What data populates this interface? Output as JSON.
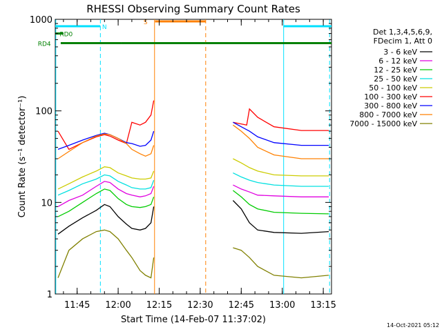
{
  "chart_data": {
    "type": "line",
    "title": "RHESSI Observing Summary Count Rates",
    "xlabel": "Start Time (14-Feb-07 11:37:02)",
    "ylabel": "Count Rate (s⁻¹ detector⁻¹)",
    "y_scale": "log",
    "ylim": [
      1,
      1000
    ],
    "xlim_minutes": [
      0,
      101
    ],
    "x_ticks": [
      {
        "t": 8,
        "label": "11:45"
      },
      {
        "t": 23,
        "label": "12:00"
      },
      {
        "t": 38,
        "label": "12:15"
      },
      {
        "t": 53,
        "label": "12:30"
      },
      {
        "t": 68,
        "label": "12:45"
      },
      {
        "t": 83,
        "label": "13:00"
      },
      {
        "t": 98,
        "label": "13:15"
      }
    ],
    "y_ticks": [
      {
        "v": 1,
        "label": "1"
      },
      {
        "v": 10,
        "label": "10"
      },
      {
        "v": 100,
        "label": "100"
      },
      {
        "v": 1000,
        "label": "1000"
      }
    ],
    "legend_header": [
      "Det 1,3,4,5,6,9,",
      "FDecim 1, Att 0"
    ],
    "legend_position": "right",
    "series": [
      {
        "name": "3 - 6 keV",
        "color": "#000000",
        "values": [
          [
            1,
            4.5
          ],
          [
            5,
            5.5
          ],
          [
            10,
            6.8
          ],
          [
            15,
            8.2
          ],
          [
            18,
            9.5
          ],
          [
            20,
            9.0
          ],
          [
            23,
            7.0
          ],
          [
            26,
            5.8
          ],
          [
            28,
            5.2
          ],
          [
            31,
            5.0
          ],
          [
            33,
            5.2
          ],
          [
            35,
            6.0
          ],
          [
            36,
            9.0
          ],
          [
            53,
            null
          ],
          [
            65,
            10.5
          ],
          [
            68,
            8.5
          ],
          [
            71,
            6.0
          ],
          [
            74,
            5.0
          ],
          [
            80,
            4.7
          ],
          [
            90,
            4.6
          ],
          [
            100,
            4.8
          ]
        ]
      },
      {
        "name": "6 - 12 keV",
        "color": "#e000e0",
        "values": [
          [
            1,
            9.0
          ],
          [
            5,
            10.5
          ],
          [
            10,
            12.0
          ],
          [
            15,
            15.0
          ],
          [
            18,
            17.0
          ],
          [
            20,
            16.5
          ],
          [
            23,
            14.0
          ],
          [
            26,
            12.5
          ],
          [
            28,
            12.0
          ],
          [
            31,
            11.5
          ],
          [
            33,
            11.8
          ],
          [
            35,
            12.5
          ],
          [
            36,
            15.0
          ],
          [
            53,
            null
          ],
          [
            65,
            15.5
          ],
          [
            68,
            14.0
          ],
          [
            71,
            13.0
          ],
          [
            74,
            12.0
          ],
          [
            80,
            11.8
          ],
          [
            90,
            11.5
          ],
          [
            100,
            11.5
          ]
        ]
      },
      {
        "name": "12 - 25 keV",
        "color": "#00cc00",
        "values": [
          [
            1,
            7.0
          ],
          [
            5,
            8.0
          ],
          [
            10,
            10.0
          ],
          [
            15,
            12.5
          ],
          [
            18,
            14.0
          ],
          [
            20,
            13.5
          ],
          [
            23,
            11.0
          ],
          [
            26,
            9.5
          ],
          [
            28,
            9.0
          ],
          [
            31,
            8.8
          ],
          [
            33,
            9.0
          ],
          [
            35,
            9.5
          ],
          [
            36,
            11.5
          ],
          [
            53,
            null
          ],
          [
            65,
            13.5
          ],
          [
            68,
            11.5
          ],
          [
            71,
            9.5
          ],
          [
            74,
            8.5
          ],
          [
            80,
            7.8
          ],
          [
            90,
            7.6
          ],
          [
            100,
            7.5
          ]
        ]
      },
      {
        "name": "25 - 50 keV",
        "color": "#00e0e0",
        "values": [
          [
            1,
            12.0
          ],
          [
            5,
            13.5
          ],
          [
            10,
            16.0
          ],
          [
            15,
            18.0
          ],
          [
            18,
            20.0
          ],
          [
            20,
            19.5
          ],
          [
            23,
            17.0
          ],
          [
            26,
            15.5
          ],
          [
            28,
            14.5
          ],
          [
            31,
            14.0
          ],
          [
            33,
            14.0
          ],
          [
            35,
            14.5
          ],
          [
            36,
            17.5
          ],
          [
            53,
            null
          ],
          [
            65,
            21.0
          ],
          [
            68,
            19.0
          ],
          [
            71,
            17.5
          ],
          [
            74,
            16.5
          ],
          [
            80,
            15.5
          ],
          [
            90,
            15.0
          ],
          [
            100,
            15.0
          ]
        ]
      },
      {
        "name": "50 - 100 keV",
        "color": "#cccc00",
        "values": [
          [
            1,
            14.0
          ],
          [
            5,
            16.0
          ],
          [
            10,
            19.0
          ],
          [
            15,
            22.0
          ],
          [
            18,
            24.5
          ],
          [
            20,
            24.0
          ],
          [
            23,
            21.0
          ],
          [
            26,
            19.5
          ],
          [
            28,
            18.5
          ],
          [
            31,
            18.0
          ],
          [
            33,
            18.0
          ],
          [
            35,
            18.5
          ],
          [
            36,
            22.0
          ],
          [
            53,
            null
          ],
          [
            65,
            30.0
          ],
          [
            68,
            27.0
          ],
          [
            71,
            24.0
          ],
          [
            74,
            22.0
          ],
          [
            80,
            20.0
          ],
          [
            90,
            19.5
          ],
          [
            100,
            19.5
          ]
        ]
      },
      {
        "name": "100 - 300 keV",
        "color": "#ff0000",
        "values": [
          [
            1,
            60.0
          ],
          [
            5,
            38.0
          ],
          [
            10,
            45.0
          ],
          [
            15,
            52.0
          ],
          [
            18,
            55.0
          ],
          [
            20,
            53.0
          ],
          [
            23,
            48.0
          ],
          [
            26,
            44.0
          ],
          [
            28,
            75.0
          ],
          [
            31,
            70.0
          ],
          [
            33,
            75.0
          ],
          [
            35,
            90.0
          ],
          [
            36,
            130.0
          ],
          [
            53,
            null
          ],
          [
            65,
            75.0
          ],
          [
            68,
            72.0
          ],
          [
            70,
            70.0
          ],
          [
            71,
            105.0
          ],
          [
            74,
            85.0
          ],
          [
            80,
            67.0
          ],
          [
            90,
            61.0
          ],
          [
            100,
            61.0
          ]
        ]
      },
      {
        "name": "300 - 800 keV",
        "color": "#0000ff",
        "values": [
          [
            1,
            38.0
          ],
          [
            5,
            42.0
          ],
          [
            10,
            48.0
          ],
          [
            15,
            54.0
          ],
          [
            18,
            57.0
          ],
          [
            20,
            55.0
          ],
          [
            23,
            50.0
          ],
          [
            26,
            45.0
          ],
          [
            28,
            44.0
          ],
          [
            31,
            41.0
          ],
          [
            33,
            42.0
          ],
          [
            35,
            48.0
          ],
          [
            36,
            60.0
          ],
          [
            53,
            null
          ],
          [
            65,
            75.0
          ],
          [
            68,
            67.0
          ],
          [
            71,
            60.0
          ],
          [
            74,
            52.0
          ],
          [
            80,
            45.0
          ],
          [
            90,
            42.0
          ],
          [
            100,
            42.0
          ]
        ]
      },
      {
        "name": "800 - 7000 keV",
        "color": "#ff8000",
        "values": [
          [
            1,
            30.0
          ],
          [
            5,
            36.0
          ],
          [
            10,
            45.0
          ],
          [
            15,
            53.0
          ],
          [
            18,
            56.0
          ],
          [
            20,
            55.0
          ],
          [
            23,
            50.0
          ],
          [
            26,
            44.0
          ],
          [
            28,
            38.0
          ],
          [
            31,
            34.0
          ],
          [
            33,
            32.0
          ],
          [
            35,
            34.0
          ],
          [
            36,
            42.0
          ],
          [
            53,
            null
          ],
          [
            65,
            70.0
          ],
          [
            68,
            60.0
          ],
          [
            71,
            50.0
          ],
          [
            74,
            40.0
          ],
          [
            80,
            33.0
          ],
          [
            90,
            30.0
          ],
          [
            100,
            30.0
          ]
        ]
      },
      {
        "name": "7000 - 15000 keV",
        "color": "#808000",
        "values": [
          [
            1,
            1.5
          ],
          [
            5,
            3.0
          ],
          [
            10,
            4.0
          ],
          [
            15,
            4.8
          ],
          [
            18,
            5.0
          ],
          [
            20,
            4.8
          ],
          [
            23,
            4.0
          ],
          [
            26,
            3.0
          ],
          [
            28,
            2.5
          ],
          [
            31,
            1.8
          ],
          [
            33,
            1.6
          ],
          [
            35,
            1.5
          ],
          [
            36,
            2.5
          ],
          [
            53,
            null
          ],
          [
            65,
            3.2
          ],
          [
            68,
            3.0
          ],
          [
            71,
            2.5
          ],
          [
            74,
            2.0
          ],
          [
            80,
            1.6
          ],
          [
            90,
            1.5
          ],
          [
            100,
            1.6
          ]
        ]
      }
    ],
    "flag_bars": [
      {
        "label": "N",
        "color": "#00e0ff",
        "y": 840,
        "segments": [
          [
            0,
            16.5
          ],
          [
            83.5,
            101
          ]
        ],
        "label_t": 18
      },
      {
        "label": "S",
        "color": "#ff8000",
        "y": 950,
        "segments": [
          [
            36.5,
            55
          ]
        ],
        "label_t": 33
      },
      {
        "label": "RD0",
        "color": "#008000",
        "y": 700,
        "segments": [
          [
            0,
            3
          ]
        ],
        "label_t": 4
      },
      {
        "label": "RD4",
        "color": "#008000",
        "y": 550,
        "segments": [
          [
            2,
            24
          ],
          [
            24,
            55
          ],
          [
            55,
            63.5
          ],
          [
            63.5,
            101
          ]
        ],
        "label_t": -4
      }
    ],
    "vertical_lines": [
      {
        "t": 0.2,
        "color": "#00e0ff",
        "style": "solid"
      },
      {
        "t": 16.5,
        "color": "#00e0ff",
        "style": "dashed"
      },
      {
        "t": 36.3,
        "color": "#ff8000",
        "style": "solid"
      },
      {
        "t": 55.0,
        "color": "#ff8000",
        "style": "dashed"
      },
      {
        "t": 83.5,
        "color": "#00e0ff",
        "style": "solid"
      },
      {
        "t": 100.3,
        "color": "#00e0ff",
        "style": "dashed"
      }
    ],
    "timestamp": "14-Oct-2021 05:12"
  }
}
